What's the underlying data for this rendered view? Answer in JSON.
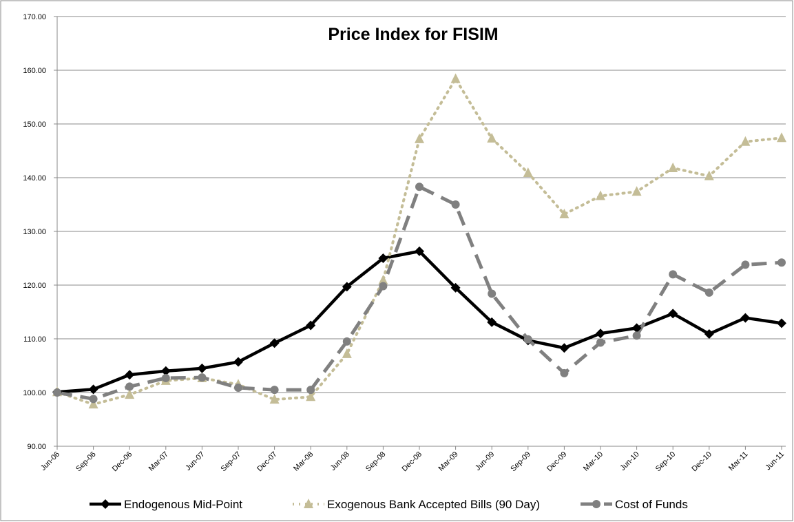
{
  "chart_data": {
    "type": "line",
    "title": "Price Index for FISIM",
    "categories": [
      "Jun-06",
      "Sep-06",
      "Dec-06",
      "Mar-07",
      "Jun-07",
      "Sep-07",
      "Dec-07",
      "Mar-08",
      "Jun-08",
      "Sep-08",
      "Dec-08",
      "Mar-09",
      "Jun-09",
      "Sep-09",
      "Dec-09",
      "Mar-10",
      "Jun-10",
      "Sep-10",
      "Dec-10",
      "Mar-11",
      "Jun-11"
    ],
    "series": [
      {
        "name": "Endogenous Mid-Point",
        "color": "#000000",
        "values": [
          100.1,
          100.6,
          103.3,
          104.0,
          104.5,
          105.7,
          109.2,
          112.5,
          119.7,
          125.0,
          126.3,
          119.5,
          113.1,
          109.7,
          108.3,
          111.0,
          112.0,
          114.7,
          110.9,
          113.9,
          112.9
        ]
      },
      {
        "name": "Exogenous Bank Accepted Bills (90 Day)",
        "color": "#c4bd97",
        "values": [
          100.1,
          97.8,
          99.6,
          102.2,
          102.7,
          101.5,
          98.7,
          99.2,
          107.2,
          120.9,
          147.2,
          158.4,
          147.3,
          140.9,
          133.2,
          136.6,
          137.4,
          141.8,
          140.3,
          146.7,
          147.4
        ]
      },
      {
        "name": "Cost of Funds",
        "color": "#808080",
        "values": [
          100.0,
          98.8,
          101.1,
          102.7,
          102.8,
          100.9,
          100.5,
          100.5,
          109.5,
          119.8,
          138.3,
          135.0,
          118.4,
          109.9,
          103.6,
          109.3,
          110.6,
          122.0,
          118.6,
          123.8,
          124.2
        ]
      }
    ],
    "ylim": [
      90,
      170
    ],
    "yticks": [
      {
        "value": 90,
        "label": "90.00"
      },
      {
        "value": 100,
        "label": "100.00"
      },
      {
        "value": 110,
        "label": "110.00"
      },
      {
        "value": 120,
        "label": "120.00"
      },
      {
        "value": 130,
        "label": "130.00"
      },
      {
        "value": 140,
        "label": "140.00"
      },
      {
        "value": 150,
        "label": "150.00"
      },
      {
        "value": 160,
        "label": "160.00"
      },
      {
        "value": 170,
        "label": "170.00"
      }
    ],
    "grid": true,
    "legend": "bottom"
  }
}
